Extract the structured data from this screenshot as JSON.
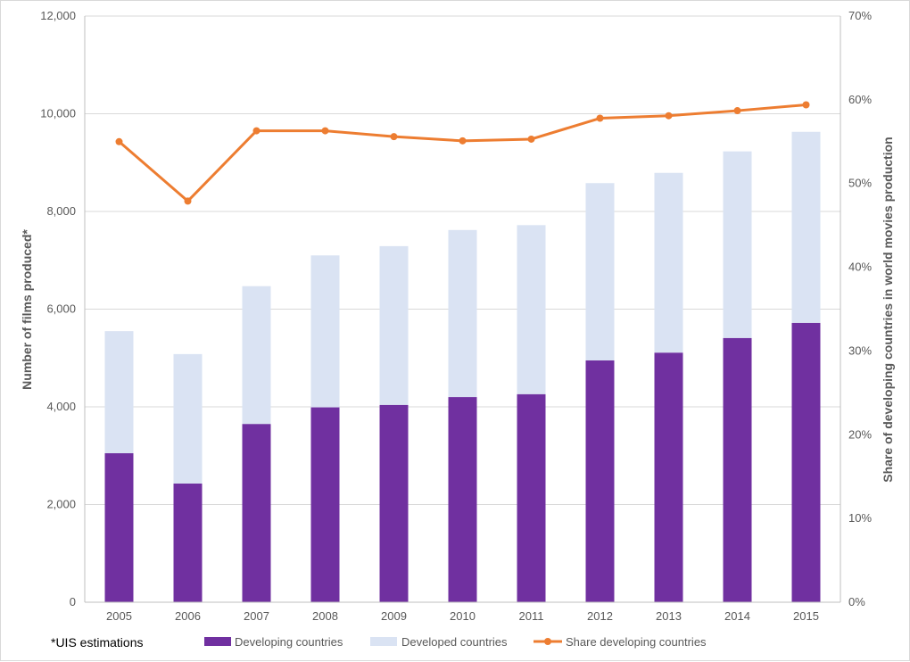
{
  "chart_data": {
    "type": "bar",
    "title": "",
    "categories": [
      "2005",
      "2006",
      "2007",
      "2008",
      "2009",
      "2010",
      "2011",
      "2012",
      "2013",
      "2014",
      "2015"
    ],
    "series": [
      {
        "name": "Developing countries",
        "type": "stacked-bar",
        "axis": "left",
        "color": "#7030a0",
        "values": [
          3050,
          2430,
          3650,
          3990,
          4040,
          4200,
          4260,
          4950,
          5110,
          5410,
          5720
        ]
      },
      {
        "name": "Developed countries",
        "type": "stacked-bar",
        "axis": "left",
        "color": "#dae3f3",
        "values": [
          2500,
          2650,
          2820,
          3110,
          3250,
          3420,
          3460,
          3630,
          3680,
          3820,
          3910
        ]
      },
      {
        "name": "Share developing countries",
        "type": "line",
        "axis": "right",
        "color": "#ed7d31",
        "values": [
          55.0,
          47.9,
          56.3,
          56.3,
          55.6,
          55.1,
          55.3,
          57.8,
          58.1,
          58.7,
          59.4
        ]
      }
    ],
    "ylabel": "Number of films produced*",
    "y2label": "Share of developing countries in world movies production",
    "ylim": [
      0,
      12000
    ],
    "y2lim": [
      0,
      70
    ],
    "y_ticks": [
      "0",
      "2,000",
      "4,000",
      "6,000",
      "8,000",
      "10,000",
      "12,000"
    ],
    "y2_ticks": [
      "0%",
      "10%",
      "20%",
      "30%",
      "40%",
      "50%",
      "60%",
      "70%"
    ],
    "grid": true,
    "legend_position": "bottom",
    "footnote": "*UIS estimations"
  }
}
